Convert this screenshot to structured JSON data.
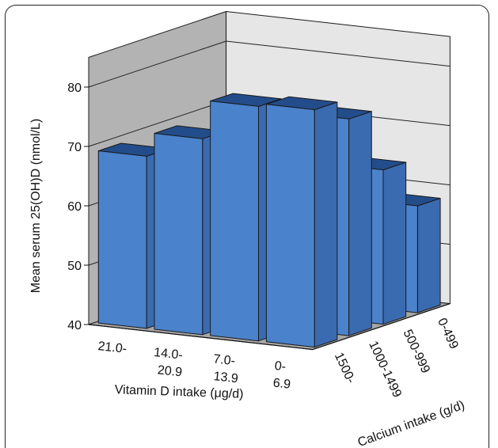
{
  "chart_data": {
    "type": "bar3d",
    "ylabel": "Mean serum 25(OH)D (nmol/L)",
    "xlabel": "Vitamin D intake (μg/d)",
    "zlabel": "Calcium intake (g/d)",
    "ylim": [
      40,
      85
    ],
    "yticks": [
      40,
      50,
      60,
      70,
      80
    ],
    "grid": true,
    "x_categories": [
      {
        "line1": "21.0-",
        "line2": ""
      },
      {
        "line1": "14.0-",
        "line2": "20.9"
      },
      {
        "line1": "7.0-",
        "line2": "13.9"
      },
      {
        "line1": "0-",
        "line2": "6.9"
      }
    ],
    "z_categories": [
      "1500-",
      "1000-1499",
      "500-999",
      "0-499"
    ],
    "values": [
      [
        69.0,
        73.0,
        79.5,
        80.0
      ],
      [
        61.0,
        67.5,
        72.0,
        76.5
      ],
      [
        55.0,
        56.5,
        60.0,
        66.0
      ],
      [
        53.0,
        51.5,
        54.0,
        58.0
      ]
    ],
    "colors": {
      "front": "#4a82cc",
      "side": "#3a6aaf",
      "top": "#234d8a",
      "edge": "#1a1a1a",
      "back_wall": "#e6e6e6",
      "left_wall": "#b3b3b3",
      "floor": "#a6a6a6",
      "grid": "#222222"
    }
  }
}
